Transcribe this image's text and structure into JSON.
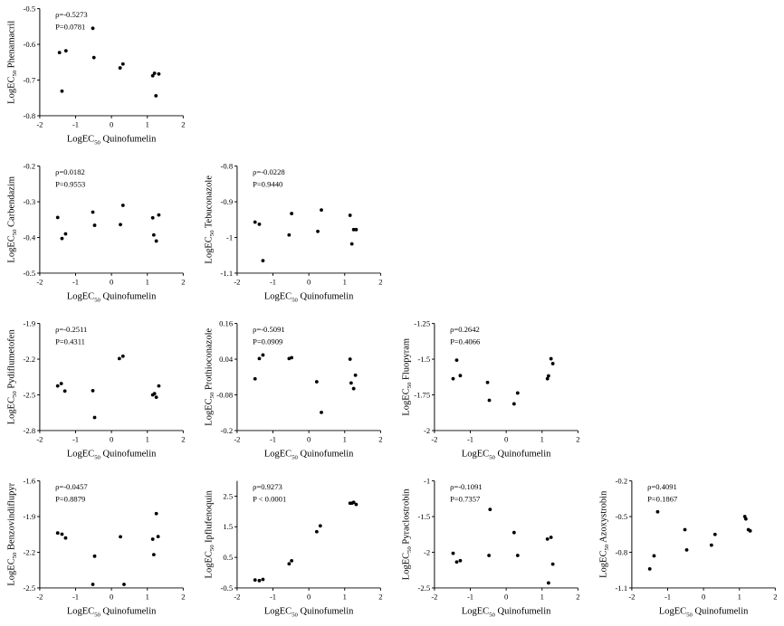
{
  "figure": {
    "x_axis_title": "Quinofumelin"
  },
  "colors": {
    "axis": "#000000",
    "point": "#000000",
    "background": "#ffffff"
  },
  "chart_data": [
    {
      "type": "scatter",
      "id": "phenamacril",
      "ylabel": "Phenamacril",
      "xlabel": "Quinofumelin",
      "xlim": [
        -2,
        2
      ],
      "ylim": [
        -0.8,
        -0.5
      ],
      "xticks": [
        -2,
        -1,
        0,
        1,
        2
      ],
      "yticks": [
        -0.8,
        -0.7,
        -0.6,
        -0.5
      ],
      "xtick_labels": [
        "-2",
        "-1",
        "0",
        "1",
        "2"
      ],
      "ytick_labels": [
        "-0.8",
        "-0.7",
        "-0.6",
        "-0.5"
      ],
      "stat_r": "ρ=-0.5273",
      "stat_p": "P=0.0781",
      "x": [
        -1.45,
        -1.38,
        -1.27,
        -0.52,
        -0.49,
        0.24,
        0.32,
        1.15,
        1.2,
        1.24,
        1.32
      ],
      "y": [
        -0.623,
        -0.731,
        -0.618,
        -0.555,
        -0.637,
        -0.666,
        -0.655,
        -0.688,
        -0.681,
        -0.744,
        -0.683
      ]
    },
    {
      "type": "scatter",
      "id": "carbendazim",
      "ylabel": "Carbendazim",
      "xlabel": "Quinofumelin",
      "xlim": [
        -2,
        2
      ],
      "ylim": [
        -0.5,
        -0.2
      ],
      "xticks": [
        -2,
        -1,
        0,
        1,
        2
      ],
      "yticks": [
        -0.5,
        -0.4,
        -0.3,
        -0.2
      ],
      "xtick_labels": [
        "-2",
        "-1",
        "0",
        "1",
        "2"
      ],
      "ytick_labels": [
        "-0.5",
        "-0.4",
        "-0.3",
        "-0.2"
      ],
      "stat_r": "ρ=0.0182",
      "stat_p": "P=0.9553",
      "x": [
        -1.5,
        -1.38,
        -1.28,
        -0.52,
        -0.47,
        0.25,
        0.32,
        1.15,
        1.18,
        1.25,
        1.32
      ],
      "y": [
        -0.344,
        -0.403,
        -0.39,
        -0.329,
        -0.366,
        -0.364,
        -0.31,
        -0.345,
        -0.393,
        -0.41,
        -0.337
      ]
    },
    {
      "type": "scatter",
      "id": "tebuconazole",
      "ylabel": "Tebuconazole",
      "xlabel": "Quinofumelin",
      "xlim": [
        -2,
        2
      ],
      "ylim": [
        -1.1,
        -0.8
      ],
      "xticks": [
        -2,
        -1,
        0,
        1,
        2
      ],
      "yticks": [
        -1.1,
        -1.0,
        -0.9,
        -0.8
      ],
      "xtick_labels": [
        "-2",
        "-1",
        "0",
        "1",
        "2"
      ],
      "ytick_labels": [
        "-1.1",
        "-1",
        "-0.9",
        "-0.8"
      ],
      "stat_r": "ρ=-0.0228",
      "stat_p": "P=0.9440",
      "x": [
        -1.5,
        -1.38,
        -1.28,
        -0.55,
        -0.48,
        0.25,
        0.35,
        1.15,
        1.2,
        1.25,
        1.32
      ],
      "y": [
        -0.957,
        -0.963,
        -1.065,
        -0.993,
        -0.933,
        -0.983,
        -0.923,
        -0.938,
        -1.018,
        -0.978,
        -0.978
      ]
    },
    {
      "type": "scatter",
      "id": "pydiflumetofen",
      "ylabel": "Pydiflumetofen",
      "xlabel": "Quinofumelin",
      "xlim": [
        -2,
        2
      ],
      "ylim": [
        -2.8,
        -1.9
      ],
      "xticks": [
        -2,
        -1,
        0,
        1,
        2
      ],
      "yticks": [
        -2.8,
        -2.5,
        -2.2,
        -1.9
      ],
      "xtick_labels": [
        "-2",
        "-1",
        "0",
        "1",
        "2"
      ],
      "ytick_labels": [
        "-2.8",
        "-2.5",
        "-2.2",
        "-1.9"
      ],
      "stat_r": "ρ=-0.2511",
      "stat_p": "P=0.4311",
      "x": [
        -1.5,
        -1.4,
        -1.3,
        -0.52,
        -0.47,
        0.22,
        0.32,
        1.15,
        1.2,
        1.25,
        1.32
      ],
      "y": [
        -2.425,
        -2.405,
        -2.468,
        -2.465,
        -2.69,
        -2.195,
        -2.175,
        -2.5,
        -2.49,
        -2.52,
        -2.425
      ]
    },
    {
      "type": "scatter",
      "id": "prothioconazole",
      "ylabel": "Prothioconazole",
      "xlabel": "Quinofumelin",
      "xlim": [
        -2,
        2
      ],
      "ylim": [
        -0.2,
        0.16
      ],
      "xticks": [
        -2,
        -1,
        0,
        1,
        2
      ],
      "yticks": [
        -0.2,
        -0.08,
        0.04,
        0.16
      ],
      "xtick_labels": [
        "-2",
        "-1",
        "0",
        "1",
        "2"
      ],
      "ytick_labels": [
        "-0.2",
        "-0.08",
        "0.04",
        "0.16"
      ],
      "stat_r": "ρ=-0.5091",
      "stat_p": "P=0.0909",
      "x": [
        -1.5,
        -1.38,
        -1.28,
        -0.55,
        -0.48,
        0.22,
        0.35,
        1.15,
        1.18,
        1.25,
        1.3
      ],
      "y": [
        -0.026,
        0.042,
        0.054,
        0.042,
        0.045,
        -0.036,
        -0.139,
        0.04,
        -0.04,
        -0.059,
        -0.014
      ]
    },
    {
      "type": "scatter",
      "id": "fluopyram",
      "ylabel": "Fluopyram",
      "xlabel": "Quinofumelin",
      "xlim": [
        -2,
        2
      ],
      "ylim": [
        -2.0,
        -1.25
      ],
      "xticks": [
        -2,
        -1,
        0,
        1,
        2
      ],
      "yticks": [
        -2.0,
        -1.75,
        -1.5,
        -1.25
      ],
      "xtick_labels": [
        "-2",
        "-1",
        "0",
        "1",
        "2"
      ],
      "ytick_labels": [
        "-2",
        "-1.75",
        "-1.5",
        "-1.25"
      ],
      "stat_r": "ρ=0.2642",
      "stat_p": "P=0.4066",
      "x": [
        -1.48,
        -1.38,
        -1.28,
        -0.52,
        -0.47,
        0.22,
        0.32,
        1.15,
        1.18,
        1.25,
        1.3
      ],
      "y": [
        -1.637,
        -1.507,
        -1.615,
        -1.663,
        -1.788,
        -1.813,
        -1.737,
        -1.637,
        -1.617,
        -1.497,
        -1.531
      ]
    },
    {
      "type": "scatter",
      "id": "benzovindiflupyr",
      "ylabel": "Benzovindiflupyr",
      "xlabel": "Quinofumelin",
      "xlim": [
        -2,
        2
      ],
      "ylim": [
        -2.5,
        -1.6
      ],
      "xticks": [
        -2,
        -1,
        0,
        1,
        2
      ],
      "yticks": [
        -2.5,
        -2.2,
        -1.9,
        -1.6
      ],
      "xtick_labels": [
        "-2",
        "-1",
        "0",
        "1",
        "2"
      ],
      "ytick_labels": [
        "-2.5",
        "-2.2",
        "-1.9",
        "-1.6"
      ],
      "stat_r": "ρ=-0.0457",
      "stat_p": "P=0.8879",
      "x": [
        -1.5,
        -1.38,
        -1.28,
        -0.52,
        -0.47,
        0.25,
        0.35,
        1.15,
        1.18,
        1.25,
        1.3
      ],
      "y": [
        -2.038,
        -2.048,
        -2.08,
        -2.47,
        -2.233,
        -2.07,
        -2.47,
        -2.09,
        -2.22,
        -1.875,
        -2.068
      ]
    },
    {
      "type": "scatter",
      "id": "ipflufenoquin",
      "ylabel": "Ipflufenoquin",
      "xlabel": "Quinofumelin",
      "xlim": [
        -2,
        2
      ],
      "ylim": [
        -0.5,
        3.0
      ],
      "xticks": [
        -2,
        -1,
        0,
        1,
        2
      ],
      "yticks": [
        -0.5,
        0.5,
        1.5,
        2.5
      ],
      "xtick_labels": [
        "-2",
        "-1",
        "0",
        "1",
        "2"
      ],
      "ytick_labels": [
        "-0.5",
        "0.5",
        "1.5",
        "2.5"
      ],
      "stat_r": "ρ=0.9273",
      "stat_p": "P < 0.0001",
      "x": [
        -1.5,
        -1.38,
        -1.28,
        -0.55,
        -0.48,
        0.22,
        0.32,
        1.15,
        1.2,
        1.25,
        1.32
      ],
      "y": [
        -0.24,
        -0.26,
        -0.22,
        0.29,
        0.39,
        1.34,
        1.53,
        2.27,
        2.27,
        2.3,
        2.23
      ]
    },
    {
      "type": "scatter",
      "id": "pyraclostrobin",
      "ylabel": "Pyraclostrobin",
      "xlabel": "Quinofumelin",
      "xlim": [
        -2,
        2
      ],
      "ylim": [
        -2.5,
        -1.0
      ],
      "xticks": [
        -2,
        -1,
        0,
        1,
        2
      ],
      "yticks": [
        -2.5,
        -2.0,
        -1.5,
        -1.0
      ],
      "xtick_labels": [
        "-2",
        "-1",
        "0",
        "1",
        "2"
      ],
      "ytick_labels": [
        "-2.5",
        "-2",
        "-1.5",
        "-1"
      ],
      "stat_r": "ρ=-0.1091",
      "stat_p": "P=0.7357",
      "x": [
        -1.48,
        -1.38,
        -1.28,
        -0.48,
        -0.45,
        0.22,
        0.32,
        1.15,
        1.18,
        1.25,
        1.3
      ],
      "y": [
        -2.015,
        -2.136,
        -2.118,
        -2.045,
        -1.4,
        -1.724,
        -2.045,
        -1.815,
        -2.43,
        -1.791,
        -2.166
      ]
    },
    {
      "type": "scatter",
      "id": "azoxystrobin",
      "ylabel": "Azoxystrobin",
      "xlabel": "Quinofumelin",
      "xlim": [
        -2,
        2
      ],
      "ylim": [
        -1.1,
        -0.2
      ],
      "xticks": [
        -2,
        -1,
        0,
        1,
        2
      ],
      "yticks": [
        -1.1,
        -0.8,
        -0.5,
        -0.2
      ],
      "xtick_labels": [
        "-2",
        "-1",
        "0",
        "1",
        "2"
      ],
      "ytick_labels": [
        "-1.1",
        "-0.8",
        "-0.5",
        "-0.2"
      ],
      "stat_r": "ρ=0.4091",
      "stat_p": "P=0.1867",
      "x": [
        -1.5,
        -1.38,
        -1.28,
        -0.52,
        -0.47,
        0.22,
        0.32,
        1.15,
        1.18,
        1.25,
        1.3
      ],
      "y": [
        -0.94,
        -0.83,
        -0.46,
        -0.61,
        -0.78,
        -0.74,
        -0.65,
        -0.5,
        -0.52,
        -0.61,
        -0.62
      ]
    }
  ]
}
